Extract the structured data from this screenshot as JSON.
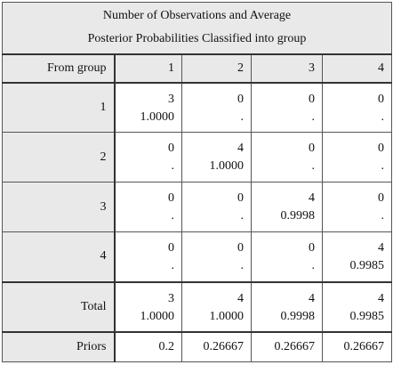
{
  "title": [
    "Number of Observations and Average",
    "Posterior Probabilities Classified into group"
  ],
  "table": {
    "header": [
      "From group",
      "1",
      "2",
      "3",
      "4"
    ],
    "rows": [
      {
        "label": "1",
        "cells": [
          [
            "3",
            "1.0000"
          ],
          [
            "0",
            "."
          ],
          [
            "0",
            "."
          ],
          [
            "0",
            "."
          ]
        ]
      },
      {
        "label": "2",
        "cells": [
          [
            "0",
            "."
          ],
          [
            "4",
            "1.0000"
          ],
          [
            "0",
            "."
          ],
          [
            "0",
            "."
          ]
        ]
      },
      {
        "label": "3",
        "cells": [
          [
            "0",
            "."
          ],
          [
            "0",
            "."
          ],
          [
            "4",
            "0.9998"
          ],
          [
            "0",
            "."
          ]
        ]
      },
      {
        "label": "4",
        "cells": [
          [
            "0",
            "."
          ],
          [
            "0",
            "."
          ],
          [
            "0",
            "."
          ],
          [
            "4",
            "0.9985"
          ]
        ]
      },
      {
        "label": "Total",
        "cells": [
          [
            "3",
            "1.0000"
          ],
          [
            "4",
            "1.0000"
          ],
          [
            "4",
            "0.9998"
          ],
          [
            "4",
            "0.9985"
          ]
        ]
      }
    ],
    "priors": {
      "label": "Priors",
      "cells": [
        "0.2",
        "0.26667",
        "0.26667",
        "0.26667"
      ]
    }
  }
}
